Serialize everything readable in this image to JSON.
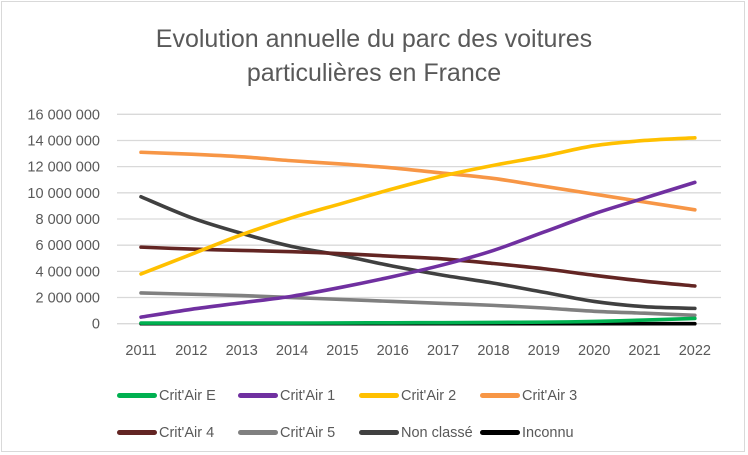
{
  "chart_data": {
    "type": "line",
    "title": "Evolution annuelle du parc des voitures particulières en France",
    "title_lines": [
      "Evolution annuelle du parc des voitures",
      "particulières en France"
    ],
    "xlabel": "",
    "ylabel": "",
    "x": [
      "2011",
      "2012",
      "2013",
      "2014",
      "2015",
      "2016",
      "2017",
      "2018",
      "2019",
      "2020",
      "2021",
      "2022"
    ],
    "ylim": [
      0,
      16000000
    ],
    "yticks": [
      0,
      2000000,
      4000000,
      6000000,
      8000000,
      10000000,
      12000000,
      14000000,
      16000000
    ],
    "ytick_labels": [
      "0",
      "2 000 000",
      "4 000 000",
      "6 000 000",
      "8 000 000",
      "10 000 000",
      "12 000 000",
      "14 000 000",
      "16 000 000"
    ],
    "grid": true,
    "legend_position": "bottom",
    "series": [
      {
        "name": "Crit'Air E",
        "color": "#00b050",
        "values": [
          50000,
          50000,
          50000,
          50000,
          60000,
          70000,
          80000,
          100000,
          120000,
          170000,
          280000,
          400000
        ]
      },
      {
        "name": "Crit'Air 1",
        "color": "#7030a0",
        "values": [
          500000,
          1100000,
          1600000,
          2100000,
          2800000,
          3600000,
          4500000,
          5600000,
          7000000,
          8400000,
          9600000,
          10800000
        ]
      },
      {
        "name": "Crit'Air 2",
        "color": "#ffc000",
        "values": [
          3800000,
          5300000,
          6800000,
          8100000,
          9200000,
          10300000,
          11300000,
          12100000,
          12800000,
          13600000,
          14000000,
          14200000
        ]
      },
      {
        "name": "Crit'Air 3",
        "color": "#f79646",
        "values": [
          13100000,
          12950000,
          12750000,
          12450000,
          12200000,
          11900000,
          11500000,
          11100000,
          10500000,
          9900000,
          9300000,
          8700000
        ]
      },
      {
        "name": "Crit'Air 4",
        "color": "#632523",
        "values": [
          5850000,
          5700000,
          5600000,
          5500000,
          5350000,
          5150000,
          4950000,
          4600000,
          4200000,
          3700000,
          3250000,
          2880000
        ]
      },
      {
        "name": "Crit'Air 5",
        "color": "#808080",
        "values": [
          2350000,
          2250000,
          2150000,
          2000000,
          1850000,
          1700000,
          1550000,
          1400000,
          1200000,
          950000,
          800000,
          640000
        ]
      },
      {
        "name": "Non classé",
        "color": "#404040",
        "values": [
          9700000,
          8100000,
          6900000,
          5900000,
          5200000,
          4400000,
          3700000,
          3100000,
          2400000,
          1700000,
          1300000,
          1170000
        ]
      },
      {
        "name": "Inconnu",
        "color": "#000000",
        "values": [
          0,
          0,
          0,
          0,
          0,
          0,
          0,
          0,
          0,
          0,
          0,
          0
        ]
      }
    ]
  }
}
